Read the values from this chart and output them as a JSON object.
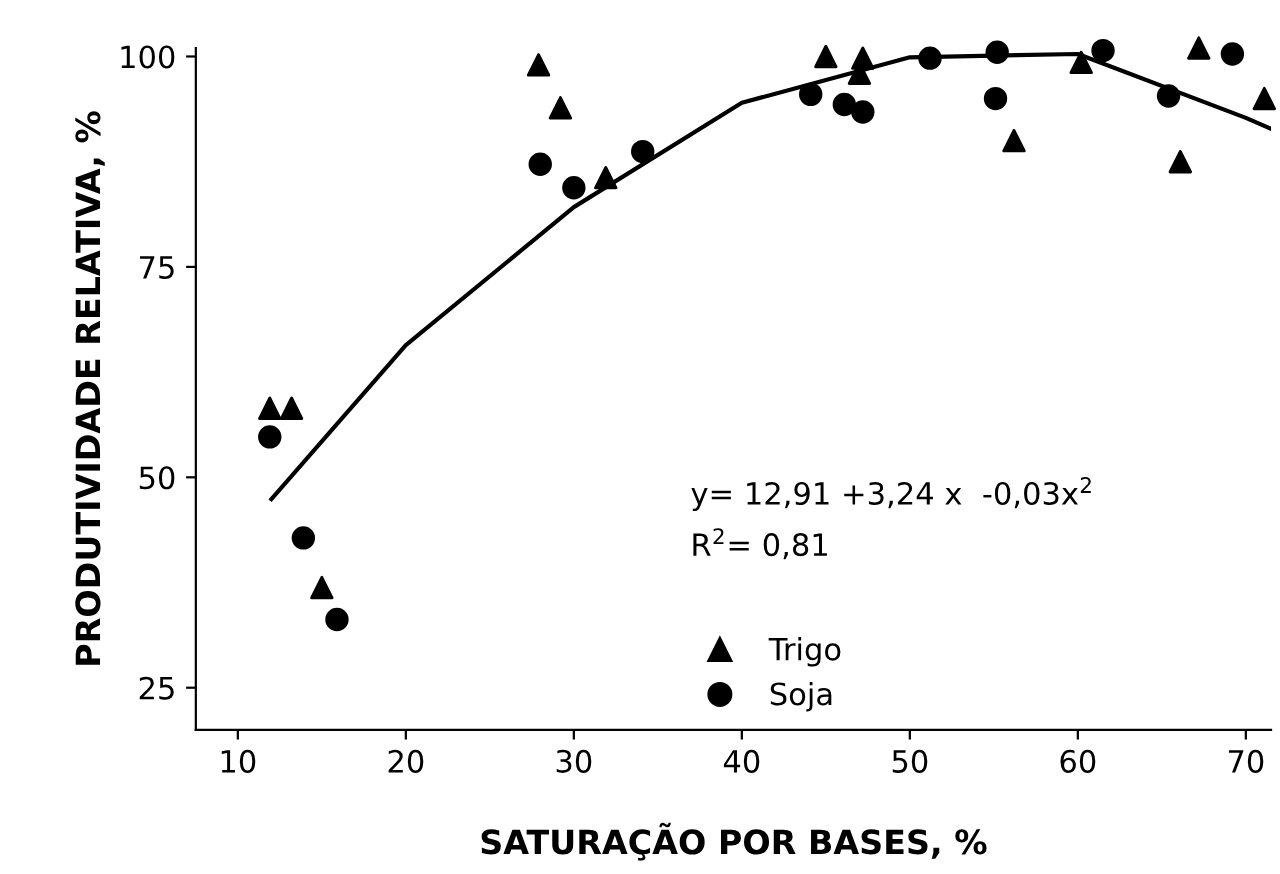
{
  "chart_data": {
    "type": "scatter",
    "xlabel": "SATURAÇÃO POR BASES, %",
    "ylabel": "PRODUTIVIDADE RELATIVA, %",
    "xlim": [
      7.5,
      71.5
    ],
    "ylim": [
      20,
      101
    ],
    "xticks": [
      10,
      20,
      30,
      40,
      50,
      60,
      70
    ],
    "yticks": [
      25,
      50,
      75,
      100
    ],
    "grid": false,
    "legend": "bottom",
    "annotations": [
      "y= 12,91 +3,24 x  -0,03x$^{2}$",
      "R$^{2}$= 0,81"
    ],
    "series": [
      {
        "name": "Trigo",
        "color": "#000000",
        "marker": "triangle",
        "x": [
          11.9,
          13.2,
          15,
          27.9,
          29.2,
          31.9,
          45,
          47.2,
          47,
          56.2,
          60.2,
          67.2,
          66.1,
          71.1
        ],
        "values": [
          58.2,
          58.2,
          36.9,
          99,
          93.9,
          85.6,
          100,
          99.8,
          98,
          90,
          99.3,
          101,
          87.5,
          95
        ]
      },
      {
        "name": "Soja",
        "color": "#000000",
        "marker": "circle",
        "x": [
          11.9,
          13.9,
          15.9,
          28,
          30,
          34.1,
          44.1,
          46.1,
          47.2,
          51.2,
          55.2,
          55.1,
          61.5,
          65.4,
          69.2
        ],
        "values": [
          54.8,
          42.8,
          33.1,
          87.2,
          84.4,
          88.7,
          95.5,
          94.3,
          93.4,
          99.8,
          100.5,
          95,
          100.7,
          95.3,
          100.3
        ]
      },
      {
        "type": "line",
        "color": "#000000",
        "x": [
          12,
          20,
          30,
          40,
          50,
          60,
          70,
          71.5
        ],
        "values": [
          47.4,
          65.7,
          82.1,
          94.5,
          99.9,
          100.3,
          92.7,
          91.4
        ]
      }
    ]
  }
}
